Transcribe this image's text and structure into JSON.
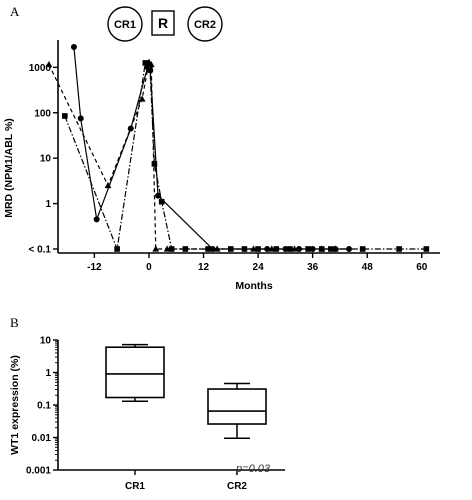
{
  "chart_data": [
    {
      "panel": "A",
      "type": "line",
      "phases": [
        "CR1",
        "R",
        "CR2"
      ],
      "xlabel": "Months",
      "ylabel": "MRD (NPM1/ABL %)",
      "xlim": [
        -20,
        64
      ],
      "y_scale": "log",
      "xticks": [
        -12,
        0,
        12,
        24,
        36,
        48,
        60
      ],
      "xtick_labels": [
        "-12",
        "0",
        "12",
        "24",
        "36",
        "48",
        "60"
      ],
      "yticks": [
        0.1,
        1,
        10,
        100,
        1000
      ],
      "ytick_labels": [
        "< 0.1",
        "1",
        "10",
        "100",
        "1000"
      ],
      "series": [
        {
          "marker": "circle",
          "line": "solid",
          "x": [
            -16.5,
            -15,
            -11.5,
            -4,
            -0.3,
            0.3,
            2,
            14,
            26,
            30,
            33,
            36,
            41,
            44
          ],
          "y": [
            2800,
            75,
            0.45,
            45,
            1000,
            850,
            1.5,
            0.1,
            0.1,
            0.1,
            0.1,
            0.1,
            0.1,
            0.1
          ]
        },
        {
          "marker": "triangle",
          "line": "dashed",
          "x": [
            -22,
            -9,
            -1.5,
            0,
            0.5,
            1.5,
            4,
            15,
            23,
            27,
            32,
            38,
            41
          ],
          "y": [
            1150,
            2.5,
            200,
            1300,
            1150,
            0.1,
            0.1,
            0.1,
            0.1,
            0.1,
            0.1,
            0.1,
            0.1
          ]
        },
        {
          "marker": "square",
          "line": "dashdot",
          "x": [
            -18.5,
            -7,
            -0.8,
            0.2,
            1.2,
            2.8,
            5,
            8,
            13,
            18,
            21,
            24,
            28,
            31,
            35,
            38,
            40,
            47,
            55,
            61
          ],
          "y": [
            85,
            0.1,
            1250,
            1050,
            7.5,
            1.1,
            0.1,
            0.1,
            0.1,
            0.1,
            0.1,
            0.1,
            0.1,
            0.1,
            0.1,
            0.1,
            0.1,
            0.1,
            0.1,
            0.1
          ]
        }
      ]
    },
    {
      "panel": "B",
      "type": "boxplot",
      "ylabel": "WT1 expression (%)",
      "y_scale": "log",
      "ylim": [
        0.001,
        10
      ],
      "yticks": [
        0.001,
        0.01,
        0.1,
        1,
        10
      ],
      "ytick_labels": [
        "0.001",
        "0.01",
        "0.1",
        "1",
        "10"
      ],
      "categories": [
        "CR1",
        "CR2"
      ],
      "boxes": [
        {
          "whisker_low": 0.13,
          "q1": 0.17,
          "median": 0.9,
          "q3": 6.0,
          "whisker_high": 7.2
        },
        {
          "whisker_low": 0.0095,
          "q1": 0.026,
          "median": 0.065,
          "q3": 0.31,
          "whisker_high": 0.46
        }
      ],
      "annotation": "p=0.03"
    }
  ],
  "panels": {
    "a": "A",
    "b": "B"
  }
}
